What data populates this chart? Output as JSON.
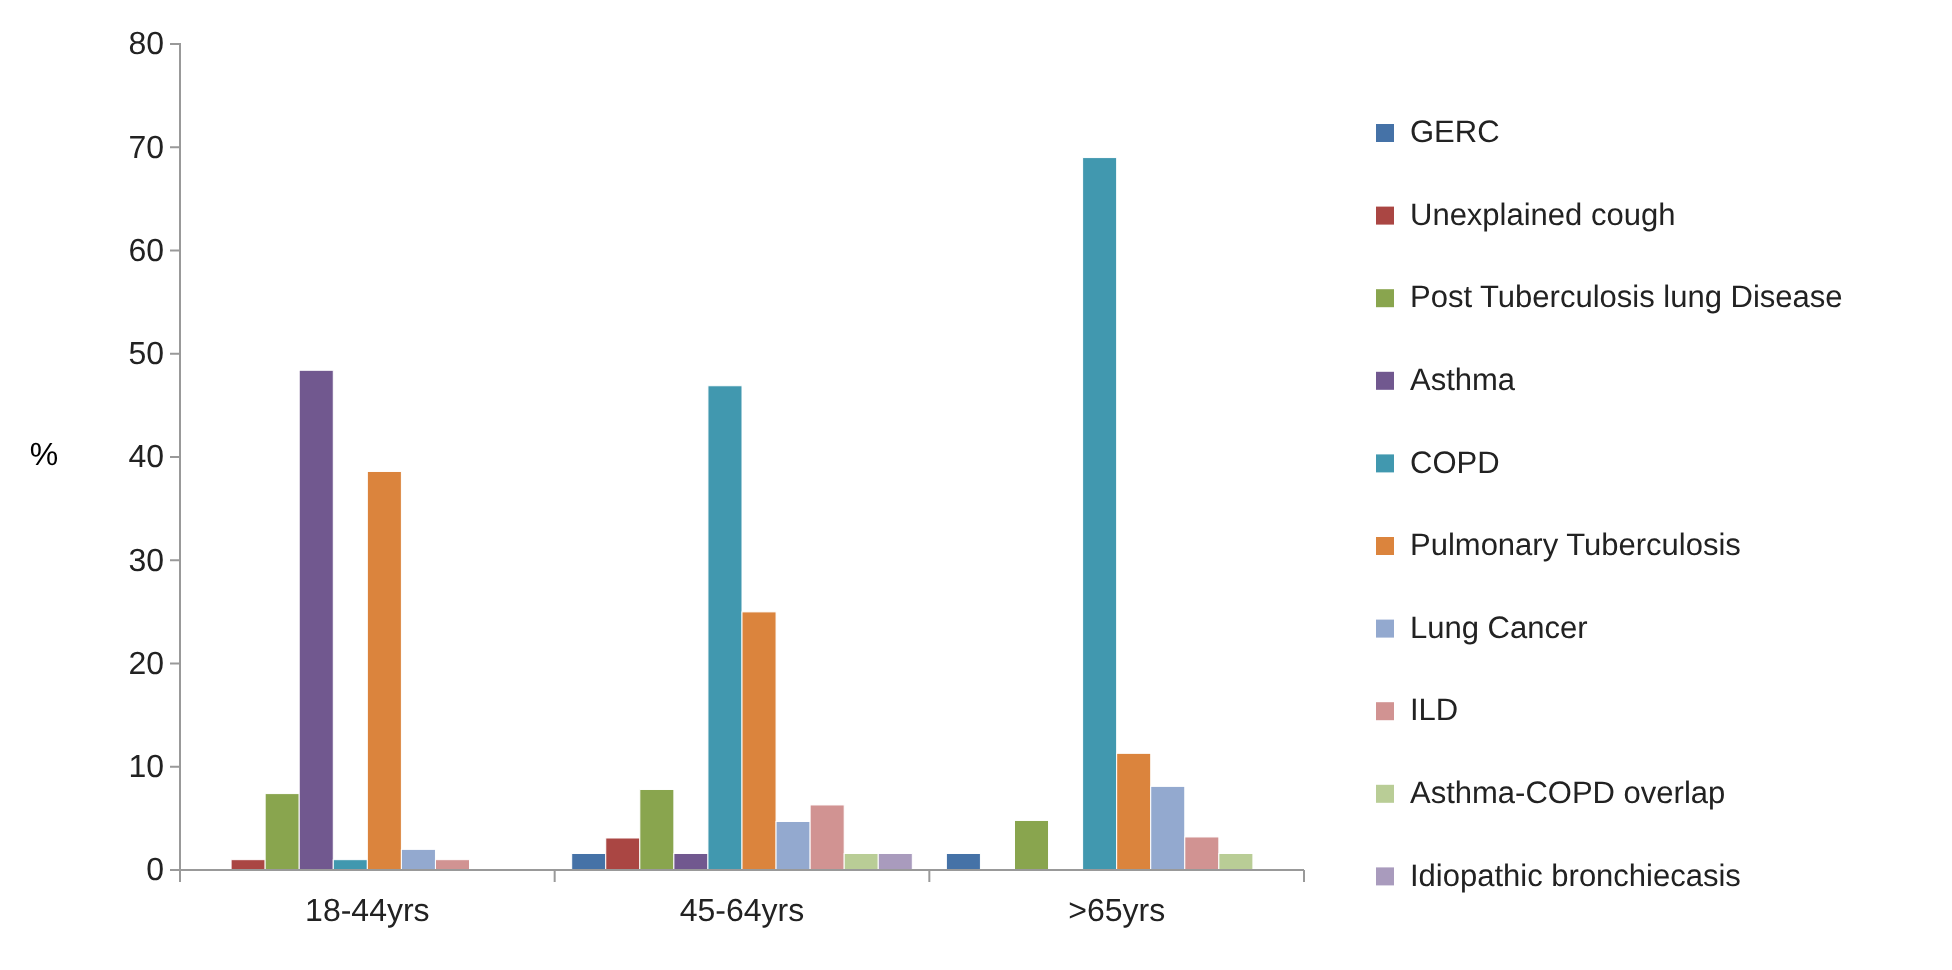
{
  "chart_data": {
    "type": "bar",
    "ylabel": "%",
    "categories": [
      "18-44yrs",
      "45-64yrs",
      ">65yrs"
    ],
    "ylim": [
      0,
      80
    ],
    "yticks": [
      0,
      10,
      20,
      30,
      40,
      50,
      60,
      70,
      80
    ],
    "grid": false,
    "legend": "right",
    "series": [
      {
        "name": "GERC",
        "color": "#4572a7",
        "values": [
          0,
          1.6,
          1.6
        ]
      },
      {
        "name": "Unexplained cough",
        "color": "#aa4643",
        "values": [
          1,
          3.1,
          0
        ]
      },
      {
        "name": "Post Tuberculosis lung Disease",
        "color": "#89a54e",
        "values": [
          7.4,
          7.8,
          4.8
        ]
      },
      {
        "name": "Asthma",
        "color": "#71588f",
        "values": [
          48.4,
          1.6,
          0
        ]
      },
      {
        "name": "COPD",
        "color": "#4198af",
        "values": [
          1,
          46.9,
          69
        ]
      },
      {
        "name": "Pulmonary Tuberculosis",
        "color": "#db843d",
        "values": [
          38.6,
          25,
          11.3
        ]
      },
      {
        "name": "Lung Cancer",
        "color": "#93a9cf",
        "values": [
          2,
          4.7,
          8.1
        ]
      },
      {
        "name": "ILD",
        "color": "#d19392",
        "values": [
          1,
          6.3,
          3.2
        ]
      },
      {
        "name": "Asthma-COPD overlap",
        "color": "#b9cd96",
        "values": [
          0,
          1.6,
          1.6
        ]
      },
      {
        "name": "Idiopathic bronchiecasis",
        "color": "#a99bbd",
        "values": [
          0,
          1.6,
          0
        ]
      }
    ]
  }
}
